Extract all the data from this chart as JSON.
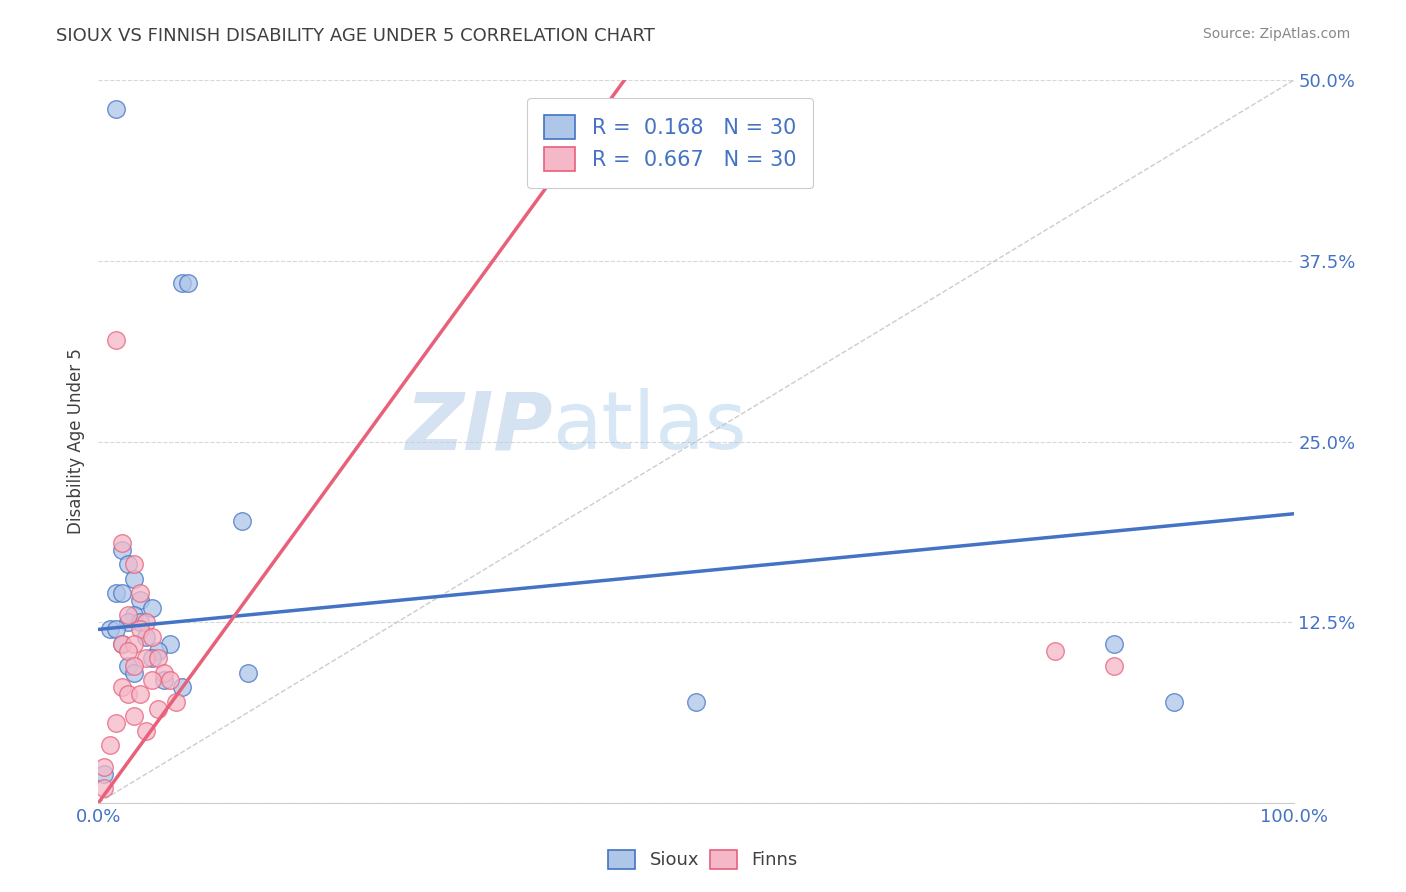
{
  "title": "SIOUX VS FINNISH DISABILITY AGE UNDER 5 CORRELATION CHART",
  "source": "Source: ZipAtlas.com",
  "ylabel": "Disability Age Under 5",
  "legend_bottom": [
    "Sioux",
    "Finns"
  ],
  "sioux_R": "0.168",
  "sioux_N": "30",
  "finns_R": "0.667",
  "finns_N": "30",
  "sioux_color": "#aec6e8",
  "finns_color": "#f5b8c8",
  "sioux_line_color": "#4472c4",
  "finns_line_color": "#e8607a",
  "diagonal_color": "#c0c0c0",
  "title_color": "#404040",
  "axis_label_color": "#4472c4",
  "source_color": "#888888",
  "background_color": "#ffffff",
  "watermark_zip": "ZIP",
  "watermark_atlas": "atlas",
  "sioux_points": [
    [
      1.5,
      48.0
    ],
    [
      7.0,
      36.0
    ],
    [
      7.5,
      36.0
    ],
    [
      12.0,
      19.5
    ],
    [
      2.0,
      17.5
    ],
    [
      2.5,
      16.5
    ],
    [
      3.0,
      15.5
    ],
    [
      1.5,
      14.5
    ],
    [
      2.0,
      14.5
    ],
    [
      3.5,
      14.0
    ],
    [
      4.5,
      13.5
    ],
    [
      3.0,
      13.0
    ],
    [
      2.5,
      12.5
    ],
    [
      3.5,
      12.5
    ],
    [
      1.0,
      12.0
    ],
    [
      1.5,
      12.0
    ],
    [
      4.0,
      11.5
    ],
    [
      2.0,
      11.0
    ],
    [
      6.0,
      11.0
    ],
    [
      5.0,
      10.5
    ],
    [
      4.5,
      10.0
    ],
    [
      2.5,
      9.5
    ],
    [
      3.0,
      9.0
    ],
    [
      12.5,
      9.0
    ],
    [
      5.5,
      8.5
    ],
    [
      7.0,
      8.0
    ],
    [
      50.0,
      7.0
    ],
    [
      85.0,
      11.0
    ],
    [
      90.0,
      7.0
    ],
    [
      0.5,
      2.0
    ]
  ],
  "finns_points": [
    [
      1.5,
      32.0
    ],
    [
      2.0,
      18.0
    ],
    [
      3.0,
      16.5
    ],
    [
      3.5,
      14.5
    ],
    [
      2.5,
      13.0
    ],
    [
      4.0,
      12.5
    ],
    [
      3.5,
      12.0
    ],
    [
      4.5,
      11.5
    ],
    [
      2.0,
      11.0
    ],
    [
      3.0,
      11.0
    ],
    [
      2.5,
      10.5
    ],
    [
      4.0,
      10.0
    ],
    [
      5.0,
      10.0
    ],
    [
      3.0,
      9.5
    ],
    [
      5.5,
      9.0
    ],
    [
      4.5,
      8.5
    ],
    [
      6.0,
      8.5
    ],
    [
      2.0,
      8.0
    ],
    [
      2.5,
      7.5
    ],
    [
      3.5,
      7.5
    ],
    [
      6.5,
      7.0
    ],
    [
      5.0,
      6.5
    ],
    [
      3.0,
      6.0
    ],
    [
      1.5,
      5.5
    ],
    [
      4.0,
      5.0
    ],
    [
      80.0,
      10.5
    ],
    [
      85.0,
      9.5
    ],
    [
      1.0,
      4.0
    ],
    [
      0.5,
      2.5
    ],
    [
      0.5,
      1.0
    ]
  ],
  "sioux_line": [
    0,
    100,
    12.0,
    20.0
  ],
  "finns_line_x": [
    0,
    22
  ],
  "finns_line_y": [
    0,
    25.0
  ],
  "xlim": [
    0,
    100
  ],
  "ylim": [
    0,
    50
  ],
  "yticks": [
    0,
    12.5,
    25.0,
    37.5,
    50.0
  ],
  "ytick_labels": [
    "",
    "12.5%",
    "25.0%",
    "37.5%",
    "50.0%"
  ],
  "xtick_labels": [
    "0.0%",
    "",
    "",
    "",
    "100.0%"
  ],
  "grid_color": "#d8d8d8",
  "figsize": [
    14.06,
    8.92
  ],
  "dpi": 100
}
